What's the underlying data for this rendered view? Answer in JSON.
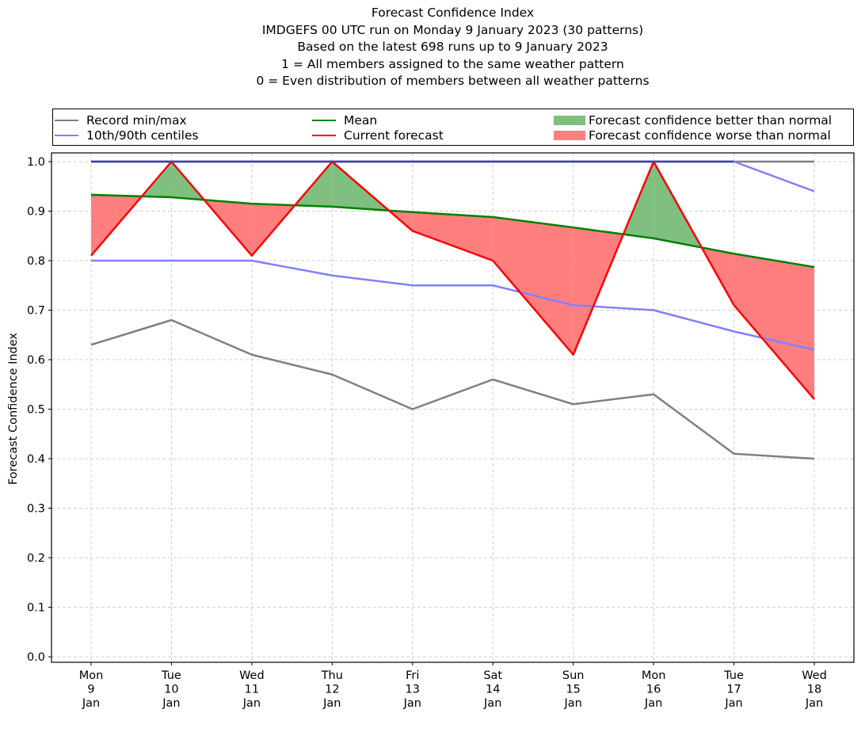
{
  "chart_data": {
    "type": "line",
    "title_lines": [
      "Forecast Confidence Index",
      "IMDGEFS 00 UTC run on Monday 9 January 2023 (30 patterns)",
      "Based on the latest 698 runs up to 9 January 2023",
      "1 = All members assigned to the same weather pattern",
      "0 = Even distribution of members between all weather patterns"
    ],
    "xlabel": "",
    "ylabel": "Forecast Confidence Index",
    "ylim": [
      0.0,
      1.0
    ],
    "yticks": [
      "0.0",
      "0.1",
      "0.2",
      "0.3",
      "0.4",
      "0.5",
      "0.6",
      "0.7",
      "0.8",
      "0.9",
      "1.0"
    ],
    "grid": true,
    "legend_placement": "top (above plot, 3 columns)",
    "categories": [
      [
        "Mon",
        "9",
        "Jan"
      ],
      [
        "Tue",
        "10",
        "Jan"
      ],
      [
        "Wed",
        "11",
        "Jan"
      ],
      [
        "Thu",
        "12",
        "Jan"
      ],
      [
        "Fri",
        "13",
        "Jan"
      ],
      [
        "Sat",
        "14",
        "Jan"
      ],
      [
        "Sun",
        "15",
        "Jan"
      ],
      [
        "Mon",
        "16",
        "Jan"
      ],
      [
        "Tue",
        "17",
        "Jan"
      ],
      [
        "Wed",
        "18",
        "Jan"
      ]
    ],
    "series": [
      {
        "name": "Record max",
        "legend": "Record min/max",
        "color": "#808080",
        "values": [
          1.0,
          1.0,
          1.0,
          1.0,
          1.0,
          1.0,
          1.0,
          1.0,
          1.0,
          1.0
        ]
      },
      {
        "name": "Record min",
        "legend": "Record min/max",
        "color": "#808080",
        "values": [
          0.63,
          0.68,
          0.61,
          0.57,
          0.5,
          0.56,
          0.51,
          0.53,
          0.41,
          0.4
        ]
      },
      {
        "name": "90th centile",
        "legend": "10th/90th centiles",
        "color": "#8080ff",
        "values": [
          1.0,
          1.0,
          1.0,
          1.0,
          1.0,
          1.0,
          1.0,
          1.0,
          1.0,
          0.94
        ]
      },
      {
        "name": "10th centile",
        "legend": "10th/90th centiles",
        "color": "#8080ff",
        "values": [
          0.8,
          0.8,
          0.8,
          0.77,
          0.75,
          0.75,
          0.71,
          0.7,
          0.657,
          0.62
        ]
      },
      {
        "name": "Mean",
        "legend": "Mean",
        "color": "#008000",
        "values": [
          0.933,
          0.928,
          0.915,
          0.909,
          0.898,
          0.888,
          0.867,
          0.845,
          0.814,
          0.787
        ]
      },
      {
        "name": "Current forecast",
        "legend": "Current forecast",
        "color": "#ff0000",
        "values": [
          0.81,
          1.0,
          0.81,
          1.0,
          0.86,
          0.8,
          0.61,
          1.0,
          0.71,
          0.52
        ]
      }
    ],
    "fills": [
      {
        "legend": "Forecast confidence better than normal",
        "color": "#7fbf7f",
        "rule": "forecast > mean"
      },
      {
        "legend": "Forecast confidence worse than normal",
        "color": "#ff7f7f",
        "rule": "forecast < mean"
      }
    ]
  },
  "legend": {
    "record": "Record min/max",
    "centiles": "10th/90th centiles",
    "mean": "Mean",
    "current": "Current forecast",
    "better": "Forecast confidence better than normal",
    "worse": "Forecast confidence worse than normal"
  },
  "colors": {
    "record": "#808080",
    "centiles": "#8080ff",
    "mean": "#008000",
    "current": "#ff0000",
    "better": "#7fbf7f",
    "worse": "#ff7f7f"
  }
}
